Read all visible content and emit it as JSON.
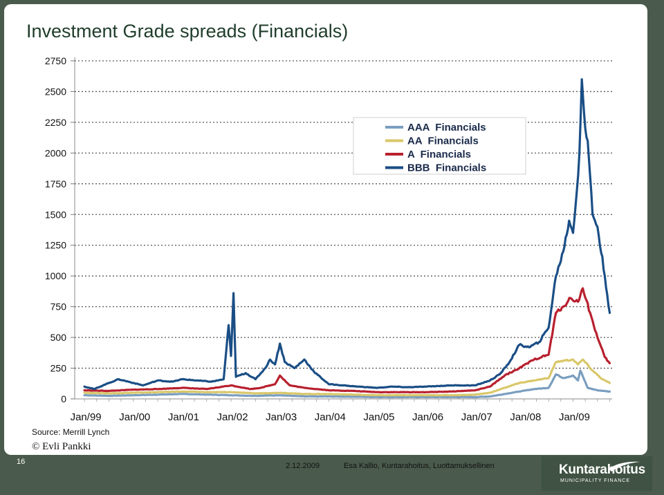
{
  "slide": {
    "title": "Investment Grade spreads (Financials)",
    "source": "Source: Merrill Lynch",
    "copyright": "© Evli Pankki",
    "page_number": "16",
    "date": "2.12.2009",
    "footer": "Esa Kallio, Kuntarahoitus, Luottamuksellinen",
    "logo_name": "Kuntarahoitus",
    "logo_sub": "MUNICIPALITY FINANCE"
  },
  "chart_data": {
    "type": "line",
    "title": "",
    "xlabel": "",
    "ylabel": "",
    "ylim": [
      0,
      2750
    ],
    "yticks": [
      0,
      250,
      500,
      750,
      1000,
      1250,
      1500,
      1750,
      2000,
      2250,
      2500,
      2750
    ],
    "ytick_labels": [
      "0",
      "250",
      "500",
      "750",
      "1000",
      "1250",
      "1500",
      "1750",
      "2000",
      "2250",
      "2500",
      "2750"
    ],
    "xlim": [
      1998.8,
      2009.8
    ],
    "xticks": [
      1999,
      2000,
      2001,
      2002,
      2003,
      2004,
      2005,
      2006,
      2007,
      2008,
      2009
    ],
    "xtick_labels": [
      "Jan/99",
      "Jan/00",
      "Jan/01",
      "Jan/02",
      "Jan/03",
      "Jan/04",
      "Jan/05",
      "Jan/06",
      "Jan/07",
      "Jan/08",
      "Jan/09"
    ],
    "grid": "horizontal-dotted",
    "legend": "top-right",
    "series": [
      {
        "name": "AAA  Financials",
        "color": "#7a9ec0",
        "points": [
          [
            1999.0,
            30
          ],
          [
            1999.5,
            25
          ],
          [
            2000.0,
            30
          ],
          [
            2000.5,
            35
          ],
          [
            2001.0,
            40
          ],
          [
            2001.5,
            35
          ],
          [
            2002.0,
            30
          ],
          [
            2002.5,
            25
          ],
          [
            2003.0,
            30
          ],
          [
            2003.5,
            20
          ],
          [
            2004.0,
            20
          ],
          [
            2004.5,
            18
          ],
          [
            2005.0,
            15
          ],
          [
            2005.5,
            15
          ],
          [
            2006.0,
            15
          ],
          [
            2006.5,
            15
          ],
          [
            2007.0,
            15
          ],
          [
            2007.3,
            20
          ],
          [
            2007.6,
            40
          ],
          [
            2007.9,
            60
          ],
          [
            2008.2,
            80
          ],
          [
            2008.5,
            90
          ],
          [
            2008.65,
            200
          ],
          [
            2008.8,
            170
          ],
          [
            2009.0,
            190
          ],
          [
            2009.1,
            150
          ],
          [
            2009.15,
            230
          ],
          [
            2009.3,
            90
          ],
          [
            2009.5,
            70
          ],
          [
            2009.75,
            60
          ]
        ]
      },
      {
        "name": "AA  Financials",
        "color": "#d9c76a",
        "points": [
          [
            1999.0,
            50
          ],
          [
            1999.5,
            45
          ],
          [
            2000.0,
            50
          ],
          [
            2000.5,
            55
          ],
          [
            2001.0,
            60
          ],
          [
            2001.5,
            55
          ],
          [
            2002.0,
            55
          ],
          [
            2002.5,
            45
          ],
          [
            2003.0,
            50
          ],
          [
            2003.5,
            40
          ],
          [
            2004.0,
            40
          ],
          [
            2004.5,
            35
          ],
          [
            2005.0,
            30
          ],
          [
            2005.5,
            30
          ],
          [
            2006.0,
            30
          ],
          [
            2006.5,
            30
          ],
          [
            2007.0,
            35
          ],
          [
            2007.3,
            50
          ],
          [
            2007.6,
            90
          ],
          [
            2007.9,
            130
          ],
          [
            2008.2,
            150
          ],
          [
            2008.5,
            170
          ],
          [
            2008.65,
            300
          ],
          [
            2008.8,
            310
          ],
          [
            2009.0,
            320
          ],
          [
            2009.1,
            280
          ],
          [
            2009.2,
            320
          ],
          [
            2009.4,
            230
          ],
          [
            2009.6,
            160
          ],
          [
            2009.75,
            130
          ]
        ]
      },
      {
        "name": "A  Financials",
        "color": "#b8202e",
        "points": [
          [
            1999.0,
            70
          ],
          [
            1999.5,
            65
          ],
          [
            2000.0,
            75
          ],
          [
            2000.5,
            80
          ],
          [
            2001.0,
            90
          ],
          [
            2001.5,
            80
          ],
          [
            2002.0,
            110
          ],
          [
            2002.4,
            80
          ],
          [
            2002.6,
            90
          ],
          [
            2002.9,
            120
          ],
          [
            2003.0,
            190
          ],
          [
            2003.2,
            110
          ],
          [
            2003.5,
            90
          ],
          [
            2004.0,
            70
          ],
          [
            2004.5,
            65
          ],
          [
            2005.0,
            55
          ],
          [
            2005.5,
            55
          ],
          [
            2006.0,
            55
          ],
          [
            2006.5,
            60
          ],
          [
            2007.0,
            70
          ],
          [
            2007.3,
            100
          ],
          [
            2007.6,
            190
          ],
          [
            2007.9,
            250
          ],
          [
            2008.2,
            320
          ],
          [
            2008.5,
            360
          ],
          [
            2008.65,
            700
          ],
          [
            2008.8,
            750
          ],
          [
            2008.95,
            820
          ],
          [
            2009.1,
            790
          ],
          [
            2009.2,
            900
          ],
          [
            2009.35,
            700
          ],
          [
            2009.5,
            500
          ],
          [
            2009.65,
            340
          ],
          [
            2009.75,
            290
          ]
        ]
      },
      {
        "name": "BBB  Financials",
        "color": "#1a4e85",
        "points": [
          [
            1999.0,
            100
          ],
          [
            1999.2,
            80
          ],
          [
            1999.5,
            130
          ],
          [
            1999.7,
            160
          ],
          [
            2000.0,
            130
          ],
          [
            2000.2,
            110
          ],
          [
            2000.5,
            150
          ],
          [
            2000.8,
            140
          ],
          [
            2001.0,
            160
          ],
          [
            2001.3,
            150
          ],
          [
            2001.6,
            140
          ],
          [
            2001.85,
            160
          ],
          [
            2001.95,
            600
          ],
          [
            2002.0,
            350
          ],
          [
            2002.05,
            860
          ],
          [
            2002.1,
            180
          ],
          [
            2002.3,
            210
          ],
          [
            2002.5,
            160
          ],
          [
            2002.7,
            250
          ],
          [
            2002.8,
            320
          ],
          [
            2002.9,
            280
          ],
          [
            2003.0,
            450
          ],
          [
            2003.1,
            300
          ],
          [
            2003.3,
            250
          ],
          [
            2003.5,
            320
          ],
          [
            2003.7,
            220
          ],
          [
            2004.0,
            120
          ],
          [
            2004.3,
            110
          ],
          [
            2004.6,
            100
          ],
          [
            2005.0,
            90
          ],
          [
            2005.3,
            100
          ],
          [
            2005.6,
            95
          ],
          [
            2006.0,
            100
          ],
          [
            2006.5,
            110
          ],
          [
            2007.0,
            110
          ],
          [
            2007.3,
            150
          ],
          [
            2007.5,
            200
          ],
          [
            2007.7,
            300
          ],
          [
            2007.9,
            440
          ],
          [
            2008.1,
            420
          ],
          [
            2008.3,
            460
          ],
          [
            2008.5,
            580
          ],
          [
            2008.65,
            1000
          ],
          [
            2008.8,
            1200
          ],
          [
            2008.92,
            1450
          ],
          [
            2009.0,
            1350
          ],
          [
            2009.08,
            1700
          ],
          [
            2009.13,
            2000
          ],
          [
            2009.18,
            2600
          ],
          [
            2009.25,
            2200
          ],
          [
            2009.3,
            2100
          ],
          [
            2009.4,
            1500
          ],
          [
            2009.5,
            1400
          ],
          [
            2009.65,
            1000
          ],
          [
            2009.75,
            700
          ]
        ]
      }
    ]
  }
}
